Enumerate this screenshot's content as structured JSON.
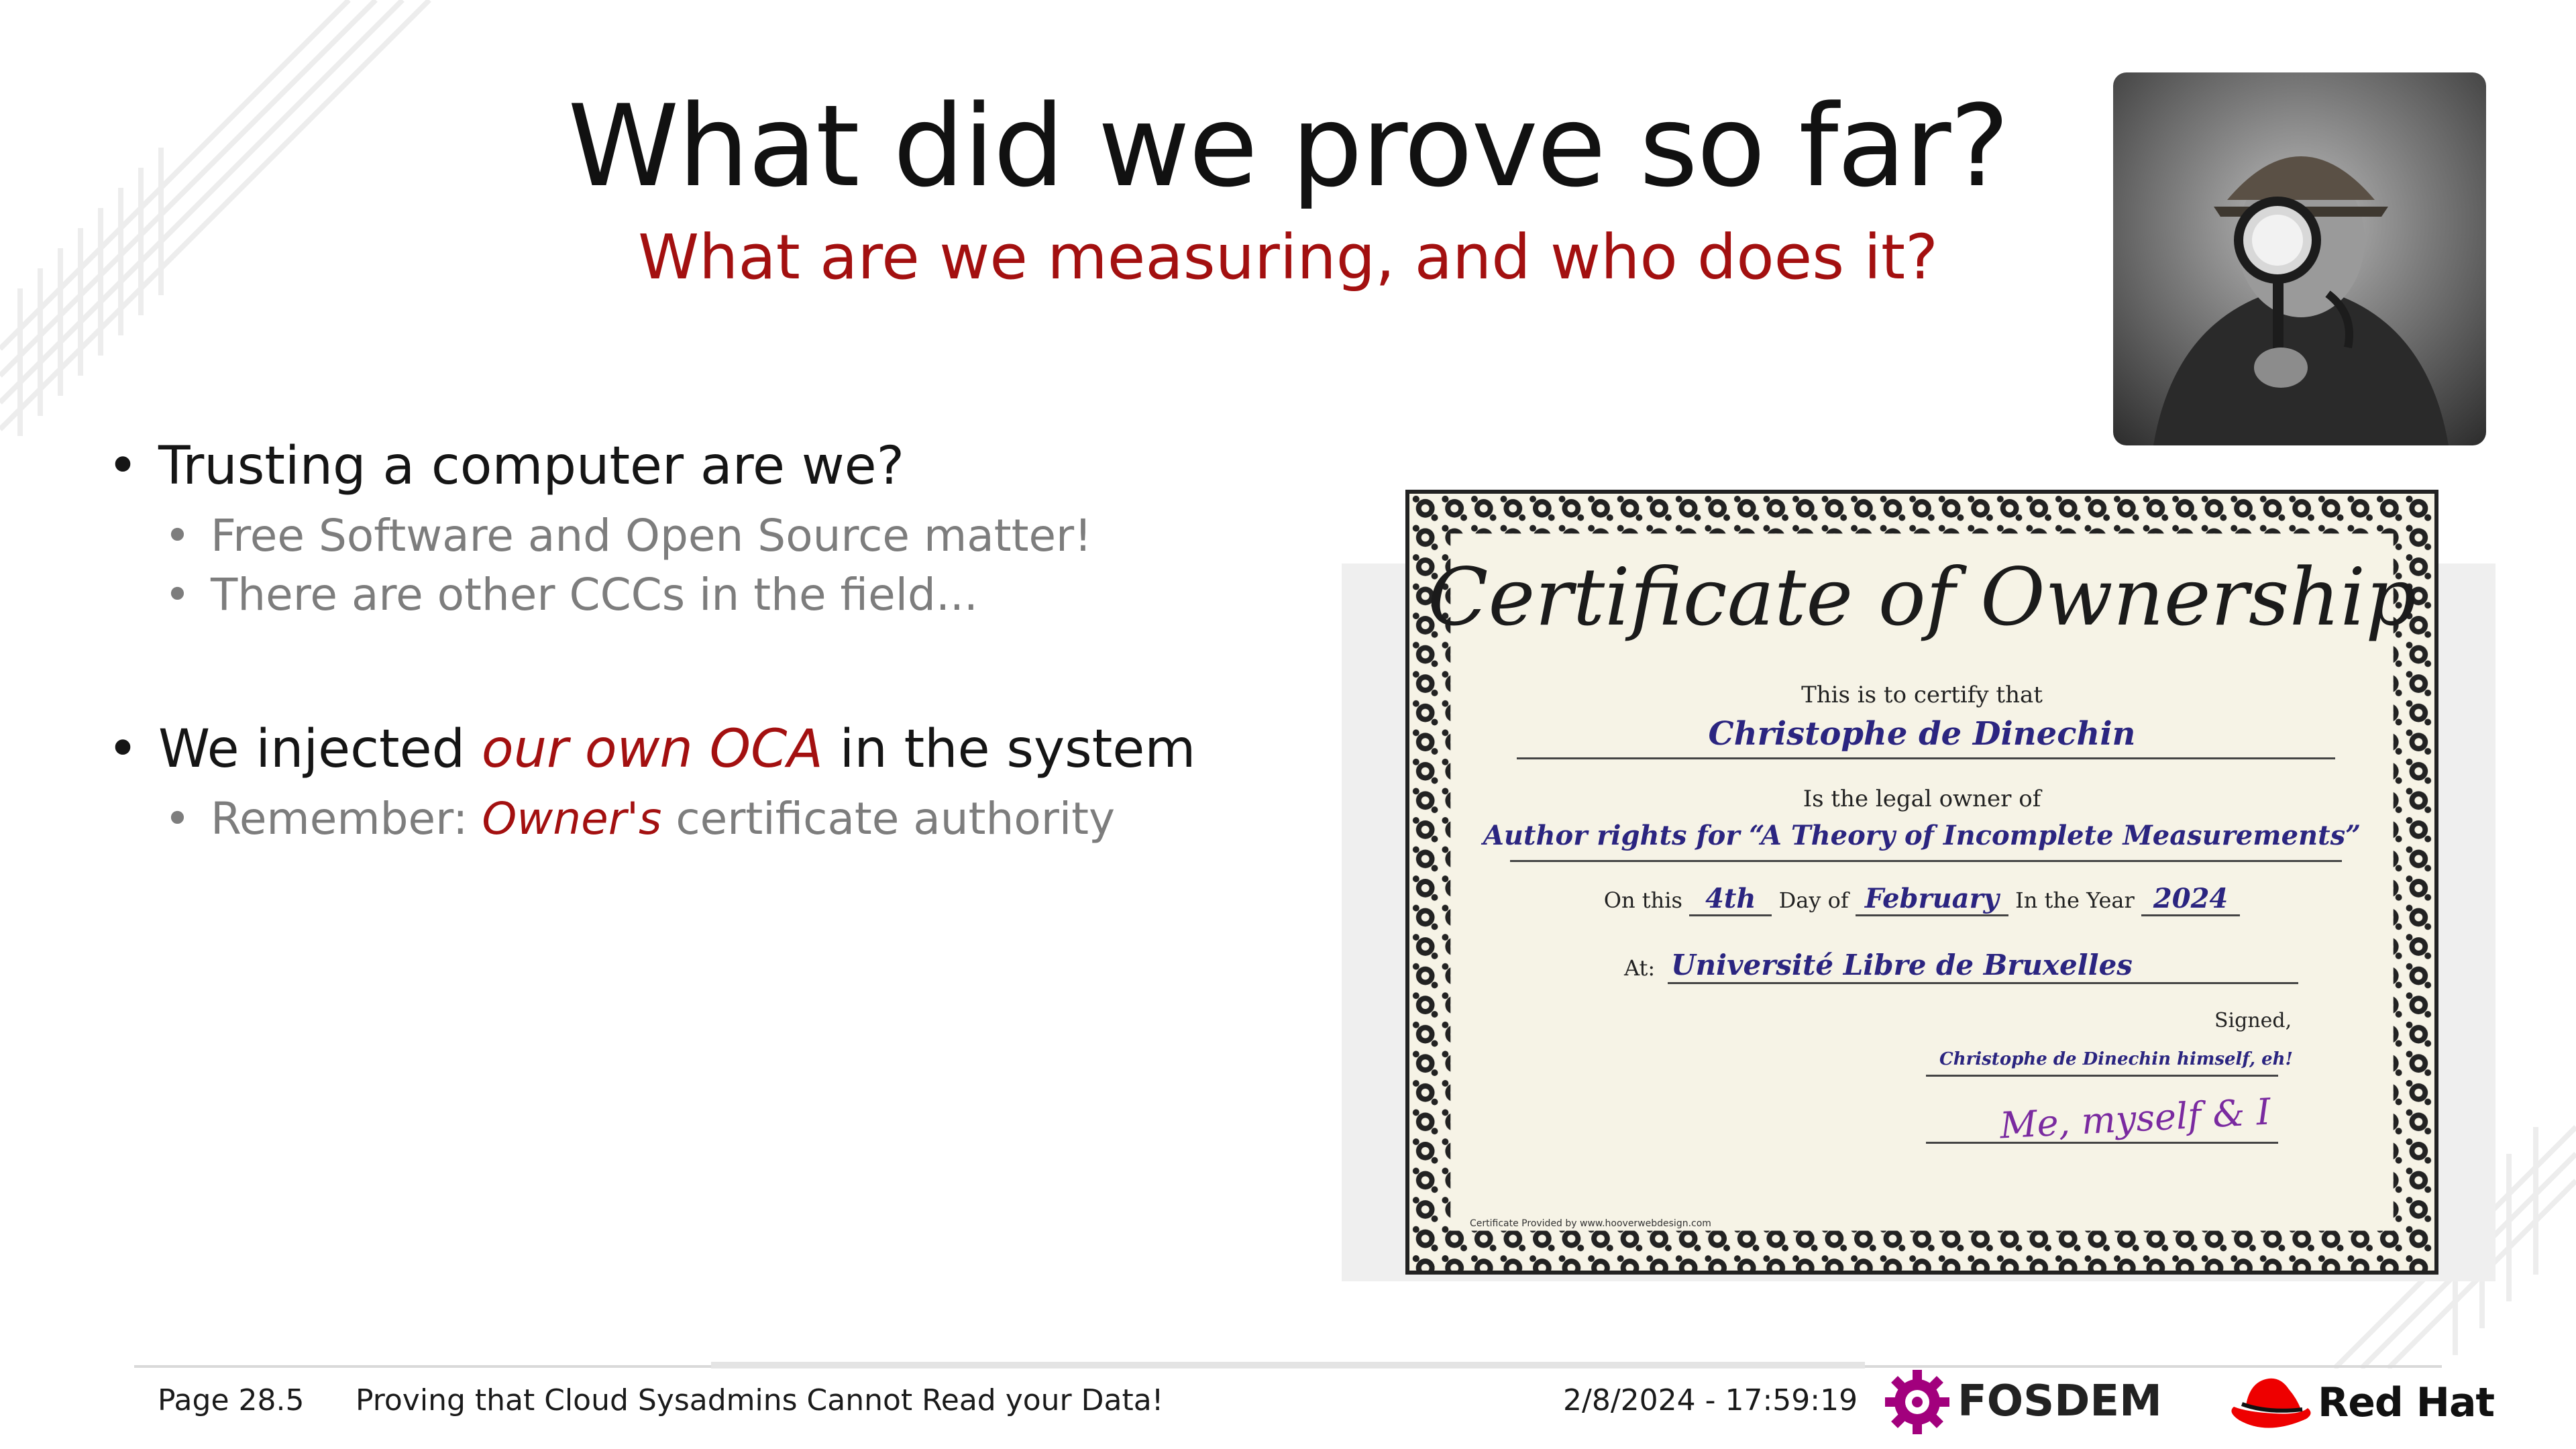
{
  "slide": {
    "title": "What did we prove so far?",
    "subtitle": "What are we measuring, and who does it?"
  },
  "bullets": {
    "b1": "Trusting a computer are we?",
    "b1_sub1": "Free Software and Open Source matter!",
    "b1_sub2": "There are other CCCs in the field...",
    "b2_pre": "We injected ",
    "b2_em": "our own OCA",
    "b2_post": " in the system",
    "b2_sub1_pre": "Remember: ",
    "b2_sub1_em": "Owner's",
    "b2_sub1_post": " certificate authority"
  },
  "certificate": {
    "heading": "Certificate of Ownership",
    "certify": "This is to certify that",
    "owner_name": "Christophe de Dinechin",
    "legal_owner": "Is the legal owner of",
    "item": "Author rights for “A Theory of Incomplete Measurements”",
    "on_this": "On this",
    "day": "4th",
    "day_of": "Day of",
    "month": "February",
    "in_year": "In the Year",
    "year": "2024",
    "at": "At:",
    "place": "Université Libre de Bruxelles",
    "signed": "Signed,",
    "signer": "Christophe de Dinechin himself, eh!",
    "signature": "Me, myself & I",
    "provided_by": "Certificate Provided by www.hooverwebdesign.com"
  },
  "footer": {
    "page": "Page 28.5",
    "talk_title": "Proving that Cloud Sysadmins Cannot Read your Data!",
    "datetime": "2/8/2024 - 17:59:19",
    "fosdem": "FOSDEM",
    "redhat": "Red Hat"
  },
  "colors": {
    "accent": "#a31010",
    "fosdem": "#a2007d",
    "redhat": "#ee0000"
  }
}
